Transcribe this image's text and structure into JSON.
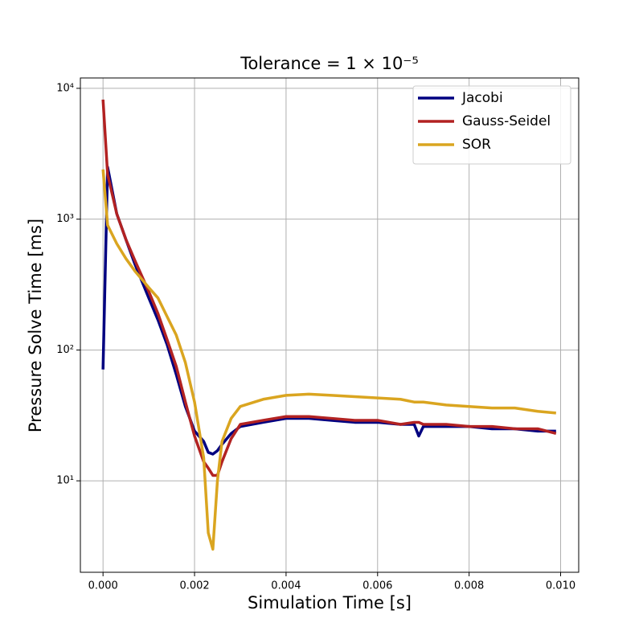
{
  "chart_data": {
    "type": "line",
    "title": "Tolerance = 1 × 10⁻⁵",
    "xlabel": "Simulation Time [s]",
    "ylabel": "Pressure Solve Time [ms]",
    "x": [
      0,
      0.0001,
      0.0003,
      0.0005,
      0.0007,
      0.001,
      0.0012,
      0.0014,
      0.0016,
      0.0018,
      0.002,
      0.0022,
      0.0023,
      0.0024,
      0.0025,
      0.0026,
      0.0028,
      0.003,
      0.0035,
      0.004,
      0.0045,
      0.005,
      0.0055,
      0.006,
      0.0065,
      0.0068,
      0.0069,
      0.007,
      0.0075,
      0.008,
      0.0085,
      0.009,
      0.0095,
      0.0099
    ],
    "series": [
      {
        "name": "Jacobi",
        "color": "#000080",
        "values": [
          71,
          2500,
          1100,
          700,
          450,
          250,
          170,
          110,
          65,
          37,
          24,
          20,
          16.5,
          16,
          17,
          19,
          23,
          26,
          28,
          30,
          30,
          29,
          28,
          28,
          27,
          27,
          22,
          26,
          26,
          26,
          25,
          25,
          24,
          24
        ]
      },
      {
        "name": "Gauss-Seidel",
        "color": "#b22222",
        "values": [
          8200,
          2200,
          1100,
          700,
          480,
          280,
          190,
          120,
          75,
          40,
          22,
          14,
          12.5,
          11,
          11,
          14,
          21,
          27,
          29,
          31,
          31,
          30,
          29,
          29,
          27,
          28,
          28,
          27,
          27,
          26,
          26,
          25,
          25,
          23
        ]
      },
      {
        "name": "SOR",
        "color": "#daa520",
        "values": [
          2400,
          900,
          650,
          500,
          400,
          300,
          250,
          180,
          130,
          80,
          40,
          15,
          4,
          3,
          10,
          20,
          30,
          37,
          42,
          45,
          46,
          45,
          44,
          43,
          42,
          40,
          40,
          40,
          38,
          37,
          36,
          36,
          34,
          33
        ]
      }
    ],
    "xlim": [
      -0.000495,
      0.010395
    ],
    "ylim": [
      2,
      12000
    ],
    "yscale": "log",
    "xticks": [
      {
        "value": 0,
        "label": "0.000"
      },
      {
        "value": 0.002,
        "label": "0.002"
      },
      {
        "value": 0.004,
        "label": "0.004"
      },
      {
        "value": 0.006,
        "label": "0.006"
      },
      {
        "value": 0.008,
        "label": "0.008"
      },
      {
        "value": 0.01,
        "label": "0.010"
      }
    ],
    "yticks": [
      {
        "value": 10,
        "label": "10¹"
      },
      {
        "value": 100,
        "label": "10²"
      },
      {
        "value": 1000,
        "label": "10³"
      },
      {
        "value": 10000,
        "label": "10⁴"
      }
    ],
    "grid": true,
    "legend": "upper right"
  }
}
